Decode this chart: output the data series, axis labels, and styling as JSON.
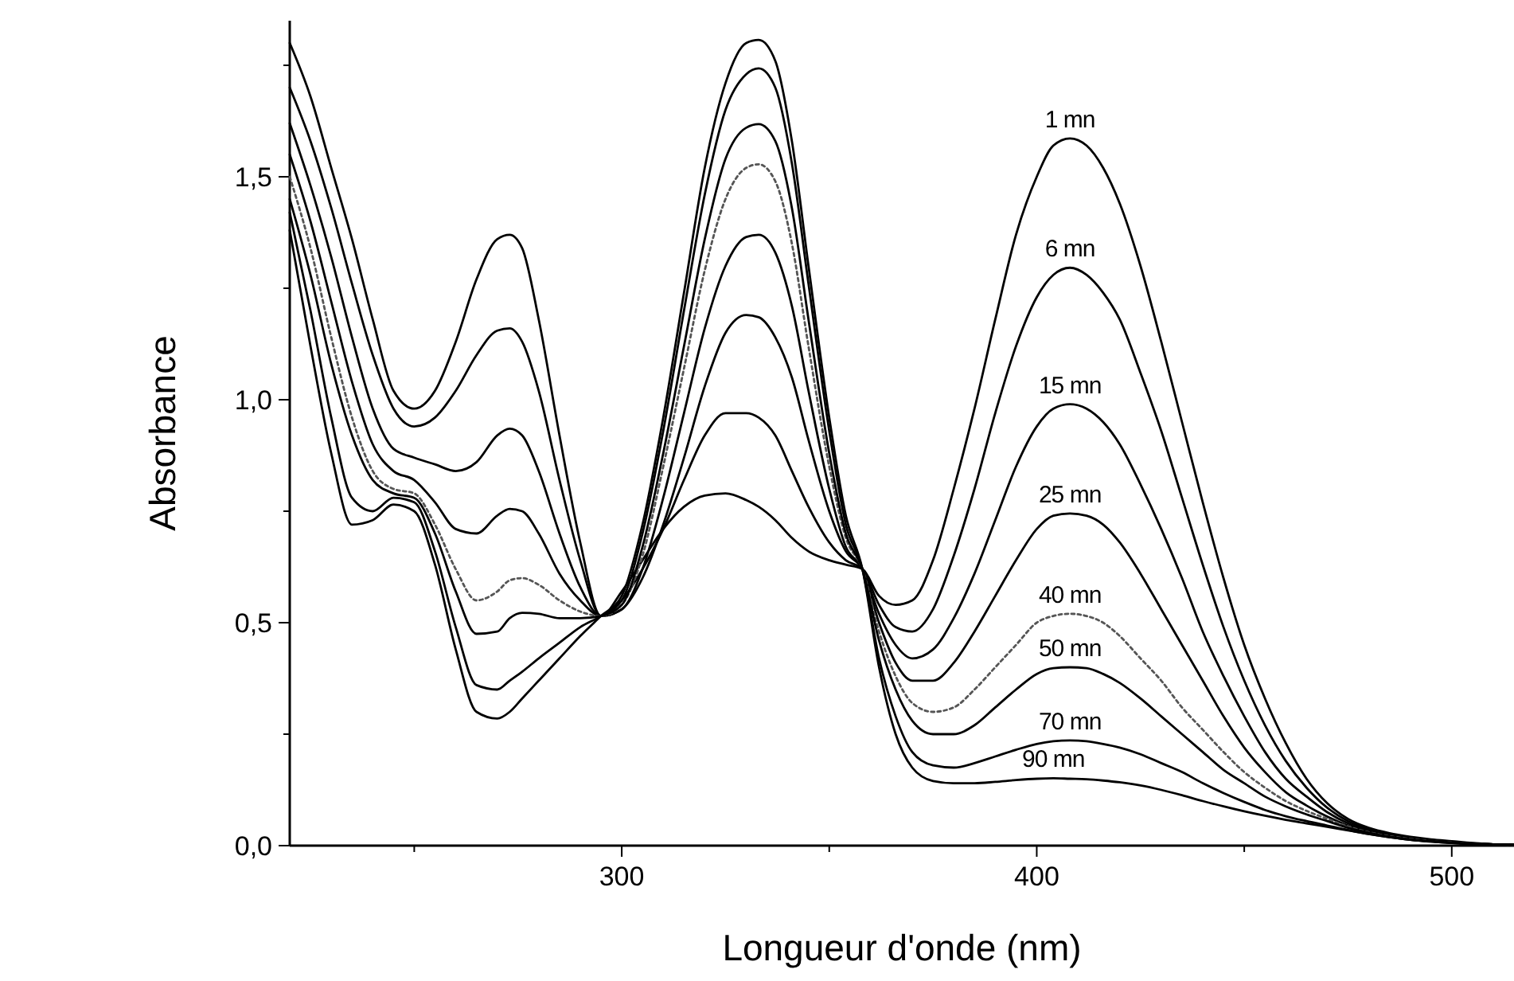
{
  "chart_data": {
    "type": "line",
    "xlabel": "Longueur d'onde (nm)",
    "ylabel": "Absorbance",
    "x": [
      220,
      225,
      230,
      235,
      240,
      245,
      250,
      255,
      260,
      265,
      270,
      273,
      276,
      280,
      285,
      290,
      295,
      300,
      305,
      310,
      315,
      320,
      325,
      330,
      333,
      337,
      341,
      345,
      350,
      354,
      358,
      362,
      366,
      370,
      375,
      380,
      385,
      390,
      395,
      400,
      404,
      408,
      412,
      416,
      420,
      425,
      430,
      435,
      440,
      445,
      450,
      455,
      460,
      465,
      470,
      475,
      480,
      485,
      490,
      495,
      500,
      505,
      510,
      515
    ],
    "xlim": [
      220,
      515
    ],
    "xticks": [
      {
        "value": 250,
        "label": null
      },
      300,
      {
        "value": 350,
        "label": null
      },
      400,
      {
        "value": 450,
        "label": null
      },
      500
    ],
    "ylim": [
      0,
      1.85
    ],
    "yticks": [
      {
        "value": 0,
        "label": "0,0"
      },
      {
        "value": 0.25,
        "label": null
      },
      {
        "value": 0.5,
        "label": "0,5"
      },
      {
        "value": 0.75,
        "label": null
      },
      {
        "value": 1,
        "label": "1,0"
      },
      {
        "value": 1.25,
        "label": null
      },
      {
        "value": 1.5,
        "label": "1,5"
      },
      {
        "value": 1.75,
        "label": null
      }
    ],
    "marker": "none",
    "line_style": "solid",
    "series": [
      {
        "name": "1 mn",
        "color": "#000000",
        "values": [
          1.8,
          1.68,
          1.52,
          1.36,
          1.18,
          1.02,
          0.98,
          1.02,
          1.13,
          1.27,
          1.36,
          1.37,
          1.34,
          1.18,
          0.92,
          0.68,
          0.515,
          0.57,
          0.64,
          0.71,
          0.76,
          0.785,
          0.79,
          0.775,
          0.76,
          0.73,
          0.69,
          0.66,
          0.64,
          0.63,
          0.62,
          0.56,
          0.54,
          0.55,
          0.64,
          0.8,
          0.98,
          1.18,
          1.37,
          1.5,
          1.57,
          1.586,
          1.57,
          1.52,
          1.44,
          1.3,
          1.13,
          0.95,
          0.77,
          0.6,
          0.45,
          0.33,
          0.23,
          0.15,
          0.095,
          0.06,
          0.04,
          0.028,
          0.02,
          0.014,
          0.01,
          0.006,
          0.003,
          0.002
        ]
      },
      {
        "name": "6 mn",
        "color": "#000000",
        "values": [
          1.7,
          1.58,
          1.43,
          1.26,
          1.1,
          0.98,
          0.94,
          0.96,
          1.02,
          1.1,
          1.155,
          1.16,
          1.13,
          1.02,
          0.82,
          0.64,
          0.515,
          0.55,
          0.62,
          0.71,
          0.82,
          0.92,
          0.97,
          0.97,
          0.96,
          0.92,
          0.84,
          0.76,
          0.68,
          0.64,
          0.62,
          0.54,
          0.49,
          0.48,
          0.53,
          0.65,
          0.8,
          0.97,
          1.12,
          1.23,
          1.28,
          1.296,
          1.28,
          1.24,
          1.18,
          1.06,
          0.93,
          0.78,
          0.63,
          0.49,
          0.37,
          0.27,
          0.19,
          0.13,
          0.085,
          0.055,
          0.037,
          0.026,
          0.018,
          0.012,
          0.008,
          0.005,
          0.003,
          0.002
        ]
      },
      {
        "name": "15 mn",
        "color": "#000000",
        "values": [
          1.62,
          1.48,
          1.32,
          1.14,
          0.98,
          0.89,
          0.87,
          0.855,
          0.84,
          0.86,
          0.92,
          0.935,
          0.92,
          0.84,
          0.7,
          0.58,
          0.515,
          0.53,
          0.6,
          0.72,
          0.87,
          1.03,
          1.15,
          1.19,
          1.185,
          1.14,
          1.05,
          0.91,
          0.75,
          0.66,
          0.62,
          0.52,
          0.45,
          0.42,
          0.44,
          0.51,
          0.61,
          0.73,
          0.85,
          0.94,
          0.98,
          0.99,
          0.98,
          0.95,
          0.9,
          0.81,
          0.71,
          0.6,
          0.48,
          0.38,
          0.29,
          0.21,
          0.15,
          0.11,
          0.075,
          0.05,
          0.034,
          0.024,
          0.017,
          0.011,
          0.007,
          0.004,
          0.003,
          0.002
        ]
      },
      {
        "name": "25 mn",
        "color": "#000000",
        "values": [
          1.55,
          1.4,
          1.22,
          1.04,
          0.9,
          0.84,
          0.82,
          0.77,
          0.71,
          0.7,
          0.74,
          0.755,
          0.75,
          0.7,
          0.61,
          0.55,
          0.515,
          0.53,
          0.62,
          0.78,
          0.97,
          1.16,
          1.3,
          1.365,
          1.37,
          1.33,
          1.21,
          1.02,
          0.8,
          0.67,
          0.62,
          0.5,
          0.41,
          0.37,
          0.37,
          0.41,
          0.48,
          0.56,
          0.64,
          0.71,
          0.74,
          0.745,
          0.74,
          0.72,
          0.68,
          0.61,
          0.53,
          0.45,
          0.37,
          0.29,
          0.22,
          0.165,
          0.12,
          0.09,
          0.065,
          0.045,
          0.031,
          0.022,
          0.016,
          0.01,
          0.007,
          0.004,
          0.003,
          0.002
        ]
      },
      {
        "name": "40 mn",
        "color": "#555555",
        "line_style": "dotted",
        "values": [
          1.5,
          1.34,
          1.14,
          0.96,
          0.84,
          0.8,
          0.79,
          0.72,
          0.62,
          0.55,
          0.57,
          0.595,
          0.6,
          0.585,
          0.55,
          0.525,
          0.515,
          0.54,
          0.65,
          0.85,
          1.07,
          1.29,
          1.45,
          1.52,
          1.528,
          1.49,
          1.35,
          1.12,
          0.85,
          0.69,
          0.62,
          0.48,
          0.38,
          0.32,
          0.3,
          0.31,
          0.35,
          0.4,
          0.45,
          0.5,
          0.515,
          0.52,
          0.515,
          0.5,
          0.47,
          0.42,
          0.37,
          0.31,
          0.26,
          0.21,
          0.165,
          0.13,
          0.1,
          0.078,
          0.06,
          0.043,
          0.03,
          0.021,
          0.015,
          0.01,
          0.007,
          0.004,
          0.003,
          0.002
        ]
      },
      {
        "name": "50 mn",
        "color": "#000000",
        "values": [
          1.45,
          1.28,
          1.08,
          0.92,
          0.82,
          0.79,
          0.78,
          0.7,
          0.57,
          0.475,
          0.48,
          0.51,
          0.522,
          0.52,
          0.51,
          0.51,
          0.515,
          0.54,
          0.67,
          0.88,
          1.12,
          1.36,
          1.54,
          1.61,
          1.618,
          1.58,
          1.43,
          1.18,
          0.88,
          0.7,
          0.62,
          0.46,
          0.35,
          0.28,
          0.25,
          0.25,
          0.27,
          0.31,
          0.35,
          0.385,
          0.398,
          0.4,
          0.398,
          0.385,
          0.365,
          0.33,
          0.29,
          0.25,
          0.21,
          0.17,
          0.14,
          0.11,
          0.088,
          0.07,
          0.055,
          0.04,
          0.029,
          0.02,
          0.014,
          0.01,
          0.007,
          0.004,
          0.003,
          0.002
        ]
      },
      {
        "name": "70 mn",
        "color": "#000000",
        "values": [
          1.42,
          1.2,
          0.96,
          0.78,
          0.75,
          0.78,
          0.77,
          0.66,
          0.49,
          0.36,
          0.35,
          0.37,
          0.39,
          0.42,
          0.455,
          0.49,
          0.515,
          0.55,
          0.7,
          0.93,
          1.2,
          1.46,
          1.65,
          1.73,
          1.743,
          1.7,
          1.53,
          1.26,
          0.93,
          0.72,
          0.62,
          0.42,
          0.29,
          0.21,
          0.18,
          0.175,
          0.185,
          0.2,
          0.215,
          0.228,
          0.234,
          0.236,
          0.234,
          0.228,
          0.22,
          0.205,
          0.185,
          0.165,
          0.14,
          0.118,
          0.098,
          0.08,
          0.066,
          0.055,
          0.045,
          0.035,
          0.026,
          0.019,
          0.013,
          0.009,
          0.006,
          0.004,
          0.003,
          0.002
        ]
      },
      {
        "name": "90 mn",
        "color": "#000000",
        "values": [
          1.38,
          1.12,
          0.88,
          0.72,
          0.73,
          0.765,
          0.75,
          0.63,
          0.44,
          0.3,
          0.285,
          0.3,
          0.33,
          0.37,
          0.42,
          0.47,
          0.515,
          0.56,
          0.72,
          0.96,
          1.24,
          1.52,
          1.71,
          1.8,
          1.807,
          1.76,
          1.58,
          1.3,
          0.96,
          0.74,
          0.62,
          0.4,
          0.25,
          0.175,
          0.145,
          0.14,
          0.14,
          0.143,
          0.147,
          0.15,
          0.151,
          0.15,
          0.149,
          0.146,
          0.142,
          0.135,
          0.125,
          0.113,
          0.1,
          0.088,
          0.077,
          0.067,
          0.058,
          0.05,
          0.042,
          0.034,
          0.026,
          0.019,
          0.013,
          0.009,
          0.006,
          0.004,
          0.003,
          0.002
        ]
      }
    ]
  }
}
